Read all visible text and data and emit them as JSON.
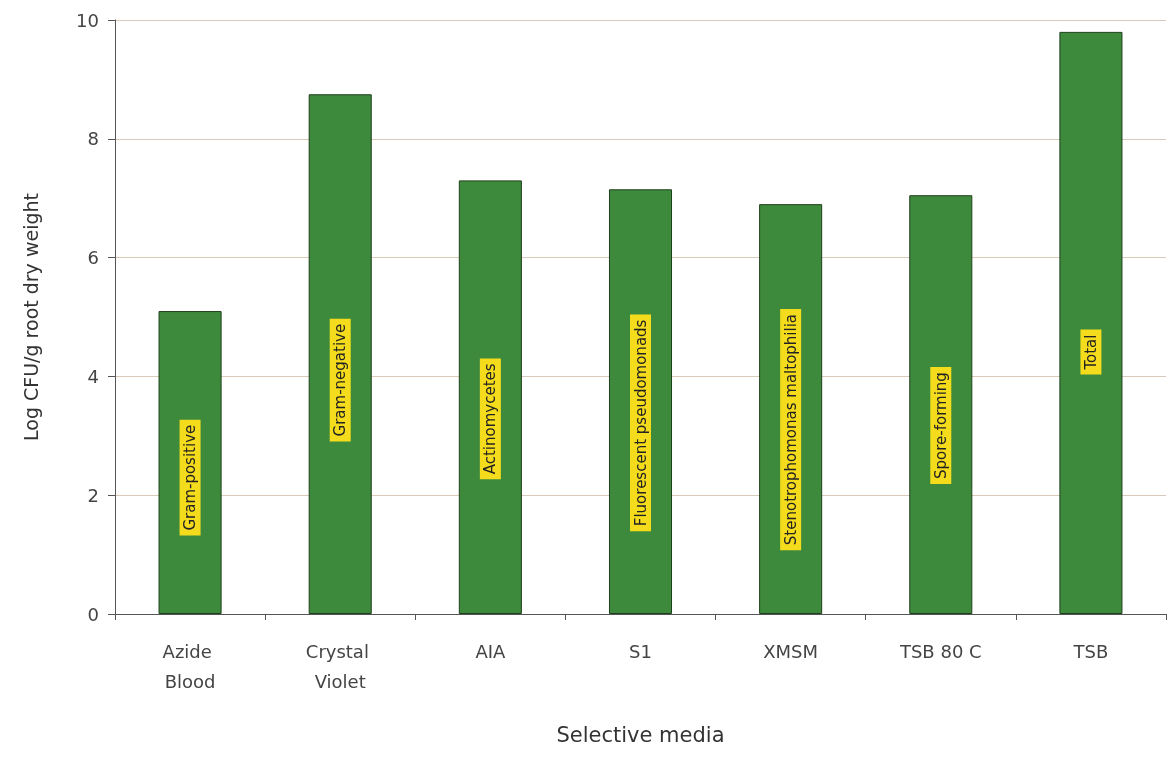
{
  "chart_data": {
    "type": "bar",
    "xlabel": "Selective media",
    "ylabel": "Log CFU/g root dry weight",
    "categories": [
      "Azide Blood",
      "Crystal Violet",
      "AIA",
      "S1",
      "XMSM",
      "TSB 80 C",
      "TSB"
    ],
    "values": [
      5.1,
      8.75,
      7.3,
      7.15,
      6.9,
      7.05,
      9.8
    ],
    "color": "#3e8a3c",
    "ylim": [
      0,
      10
    ],
    "yticks": [
      0,
      2,
      4,
      6,
      8,
      10
    ],
    "grid": "y",
    "annotations": [
      "Gram-positive",
      "Gram-negative",
      "Actinomycetes",
      "Fluorescent pseudomonads",
      "Stenotrophomonas maltophilia",
      "Spore-forming",
      "Total"
    ]
  }
}
